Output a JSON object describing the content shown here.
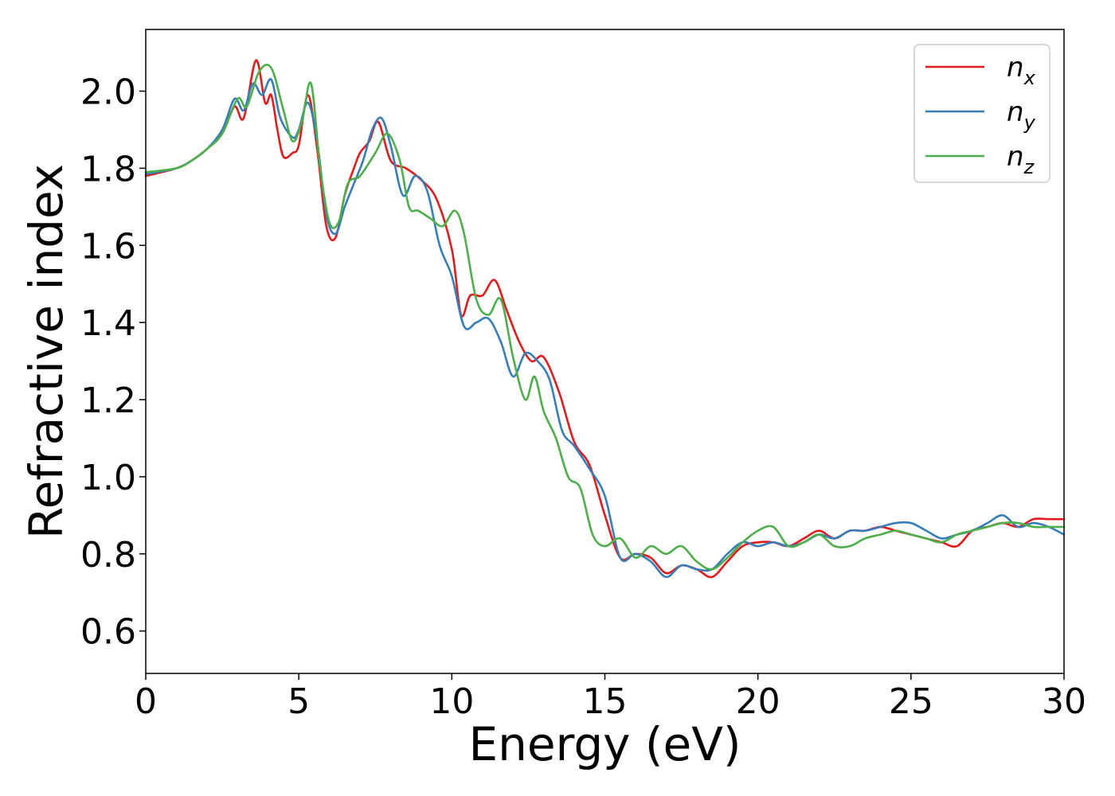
{
  "chart_data": {
    "type": "line",
    "title": "",
    "xlabel": "Energy (eV)",
    "ylabel": "Refractive index",
    "xlim": [
      0,
      30
    ],
    "ylim": [
      0.49,
      2.16
    ],
    "xticks": [
      0,
      5,
      10,
      15,
      20,
      25,
      30
    ],
    "yticks": [
      0.6,
      0.8,
      1.0,
      1.2,
      1.4,
      1.6,
      1.8,
      2.0
    ],
    "ytick_labels": [
      "0.6",
      "0.8",
      "1.0",
      "1.2",
      "1.4",
      "1.6",
      "1.8",
      "2.0"
    ],
    "grid": false,
    "legend_position": "top-right",
    "series": [
      {
        "name": "n_x",
        "label_main": "n",
        "label_sub": "x",
        "color": "#e41a1c",
        "x": [
          0,
          1,
          1.5,
          2,
          2.5,
          2.9,
          3.2,
          3.6,
          3.9,
          4.1,
          4.3,
          4.5,
          4.8,
          5.0,
          5.3,
          5.6,
          5.9,
          6.2,
          6.5,
          6.8,
          7.0,
          7.3,
          7.6,
          8.0,
          8.5,
          9.0,
          9.5,
          10.0,
          10.3,
          10.6,
          11.0,
          11.4,
          11.8,
          12.2,
          12.6,
          13.0,
          13.5,
          14.0,
          14.5,
          15.0,
          15.5,
          16.0,
          16.5,
          17.0,
          17.5,
          18.0,
          18.5,
          19.0,
          19.5,
          20.0,
          20.5,
          21.0,
          21.5,
          22.0,
          22.5,
          23.0,
          23.5,
          24.0,
          24.5,
          25.0,
          25.5,
          26.0,
          26.5,
          27.0,
          27.5,
          28.0,
          28.5,
          29.0,
          29.5,
          30.0
        ],
        "y": [
          1.78,
          1.8,
          1.82,
          1.85,
          1.89,
          1.96,
          1.93,
          2.08,
          1.97,
          1.99,
          1.9,
          1.83,
          1.84,
          1.86,
          1.99,
          1.85,
          1.65,
          1.62,
          1.73,
          1.8,
          1.84,
          1.87,
          1.92,
          1.82,
          1.8,
          1.77,
          1.72,
          1.59,
          1.42,
          1.47,
          1.47,
          1.51,
          1.43,
          1.35,
          1.3,
          1.31,
          1.22,
          1.09,
          1.03,
          0.9,
          0.79,
          0.8,
          0.79,
          0.75,
          0.77,
          0.76,
          0.74,
          0.78,
          0.82,
          0.83,
          0.83,
          0.82,
          0.84,
          0.86,
          0.84,
          0.86,
          0.86,
          0.87,
          0.86,
          0.85,
          0.84,
          0.83,
          0.82,
          0.86,
          0.87,
          0.88,
          0.87,
          0.89,
          0.89,
          0.89
        ]
      },
      {
        "name": "n_y",
        "label_main": "n",
        "label_sub": "y",
        "color": "#377eb8",
        "x": [
          0,
          1,
          1.5,
          2,
          2.5,
          2.9,
          3.2,
          3.5,
          3.8,
          4.1,
          4.4,
          4.8,
          5.0,
          5.3,
          5.6,
          5.9,
          6.2,
          6.5,
          6.8,
          7.1,
          7.4,
          7.7,
          8.0,
          8.4,
          8.8,
          9.2,
          9.6,
          10.0,
          10.4,
          10.8,
          11.2,
          11.6,
          12.0,
          12.4,
          12.8,
          13.2,
          13.6,
          14.0,
          14.5,
          15.0,
          15.5,
          16.0,
          16.5,
          17.0,
          17.5,
          18.0,
          18.5,
          19.0,
          19.5,
          20.0,
          20.5,
          21.0,
          21.5,
          22.0,
          22.5,
          23.0,
          23.5,
          24.0,
          24.5,
          25.0,
          25.5,
          26.0,
          26.5,
          27.0,
          27.5,
          28.0,
          28.5,
          29.0,
          29.5,
          30.0
        ],
        "y": [
          1.785,
          1.8,
          1.82,
          1.85,
          1.9,
          1.98,
          1.95,
          2.02,
          1.99,
          2.03,
          1.93,
          1.88,
          1.9,
          1.97,
          1.87,
          1.68,
          1.63,
          1.7,
          1.76,
          1.82,
          1.9,
          1.93,
          1.86,
          1.73,
          1.78,
          1.74,
          1.6,
          1.52,
          1.39,
          1.4,
          1.41,
          1.35,
          1.26,
          1.32,
          1.3,
          1.25,
          1.12,
          1.08,
          1.02,
          0.95,
          0.79,
          0.8,
          0.78,
          0.74,
          0.77,
          0.76,
          0.76,
          0.8,
          0.83,
          0.82,
          0.83,
          0.82,
          0.83,
          0.85,
          0.84,
          0.86,
          0.86,
          0.87,
          0.88,
          0.88,
          0.86,
          0.84,
          0.85,
          0.86,
          0.88,
          0.9,
          0.87,
          0.88,
          0.87,
          0.85
        ]
      },
      {
        "name": "n_z",
        "label_main": "n",
        "label_sub": "z",
        "color": "#4daf4a",
        "x": [
          0,
          1,
          1.5,
          2,
          2.5,
          3.0,
          3.3,
          3.7,
          4.1,
          4.5,
          4.8,
          5.1,
          5.4,
          5.7,
          6.0,
          6.3,
          6.6,
          7.0,
          7.5,
          7.9,
          8.3,
          8.6,
          8.9,
          9.3,
          9.7,
          10.1,
          10.4,
          10.8,
          11.2,
          11.6,
          12.0,
          12.4,
          12.7,
          13.0,
          13.4,
          13.8,
          14.2,
          14.6,
          15.0,
          15.5,
          16.0,
          16.5,
          17.0,
          17.5,
          18.0,
          18.5,
          19.0,
          19.5,
          20.0,
          20.5,
          21.0,
          21.5,
          22.0,
          22.5,
          23.0,
          23.5,
          24.0,
          24.5,
          25.0,
          25.5,
          26.0,
          26.5,
          27.0,
          27.5,
          28.0,
          28.5,
          29.0,
          29.5,
          30.0
        ],
        "y": [
          1.79,
          1.8,
          1.82,
          1.85,
          1.89,
          1.98,
          1.96,
          2.05,
          2.06,
          1.95,
          1.87,
          1.92,
          2.02,
          1.8,
          1.66,
          1.66,
          1.76,
          1.78,
          1.84,
          1.89,
          1.82,
          1.7,
          1.69,
          1.67,
          1.65,
          1.69,
          1.63,
          1.46,
          1.42,
          1.46,
          1.31,
          1.2,
          1.26,
          1.17,
          1.1,
          1.0,
          0.97,
          0.85,
          0.82,
          0.84,
          0.79,
          0.82,
          0.8,
          0.82,
          0.78,
          0.76,
          0.79,
          0.83,
          0.86,
          0.87,
          0.82,
          0.83,
          0.85,
          0.82,
          0.82,
          0.84,
          0.85,
          0.86,
          0.85,
          0.84,
          0.83,
          0.85,
          0.86,
          0.87,
          0.88,
          0.88,
          0.87,
          0.87,
          0.87
        ]
      }
    ]
  }
}
